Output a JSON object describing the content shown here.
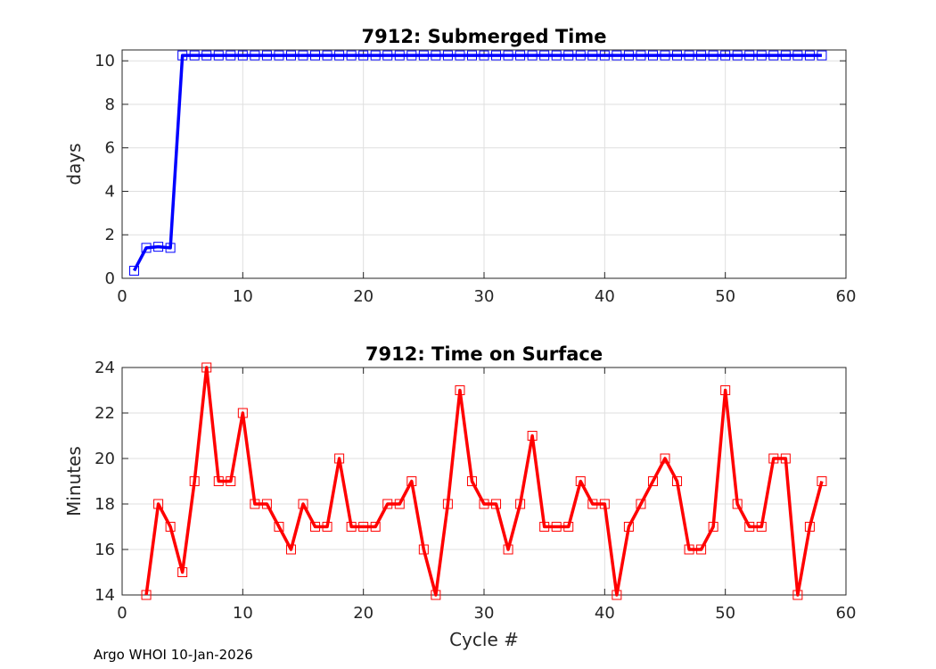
{
  "footer": "Argo WHOI 10-Jan-2026",
  "chart_data": [
    {
      "type": "line",
      "title": "7912: Submerged Time",
      "xlabel": "",
      "ylabel": "days",
      "xlim": [
        0,
        60
      ],
      "ylim": [
        0,
        10.5
      ],
      "xticks": [
        0,
        10,
        20,
        30,
        40,
        50,
        60
      ],
      "yticks": [
        0,
        2,
        4,
        6,
        8,
        10
      ],
      "grid": true,
      "color": "#0000ff",
      "marker": "square",
      "series": [
        {
          "x": [
            1,
            2,
            3,
            4,
            5,
            6,
            7,
            8,
            9,
            10,
            11,
            12,
            13,
            14,
            15,
            16,
            17,
            18,
            19,
            20,
            21,
            22,
            23,
            24,
            25,
            26,
            27,
            28,
            29,
            30,
            31,
            32,
            33,
            34,
            35,
            36,
            37,
            38,
            39,
            40,
            41,
            42,
            43,
            44,
            45,
            46,
            47,
            48,
            49,
            50,
            51,
            52,
            53,
            54,
            55,
            56,
            57,
            58
          ],
          "y": [
            0.35,
            1.4,
            1.45,
            1.4,
            10.25,
            10.25,
            10.25,
            10.25,
            10.25,
            10.25,
            10.25,
            10.25,
            10.25,
            10.25,
            10.25,
            10.25,
            10.25,
            10.25,
            10.25,
            10.25,
            10.25,
            10.25,
            10.25,
            10.25,
            10.25,
            10.25,
            10.25,
            10.25,
            10.25,
            10.25,
            10.25,
            10.25,
            10.25,
            10.25,
            10.25,
            10.25,
            10.25,
            10.25,
            10.25,
            10.25,
            10.25,
            10.25,
            10.25,
            10.25,
            10.25,
            10.25,
            10.25,
            10.25,
            10.25,
            10.25,
            10.25,
            10.25,
            10.25,
            10.25,
            10.25,
            10.25,
            10.25,
            10.25
          ]
        }
      ]
    },
    {
      "type": "line",
      "title": "7912: Time on Surface",
      "xlabel": "Cycle #",
      "ylabel": "Minutes",
      "xlim": [
        0,
        60
      ],
      "ylim": [
        14,
        24
      ],
      "xticks": [
        0,
        10,
        20,
        30,
        40,
        50,
        60
      ],
      "yticks": [
        14,
        16,
        18,
        20,
        22,
        24
      ],
      "grid": true,
      "color": "#ff0000",
      "marker": "square",
      "series": [
        {
          "x": [
            2,
            3,
            4,
            5,
            6,
            7,
            8,
            9,
            10,
            11,
            12,
            13,
            14,
            15,
            16,
            17,
            18,
            19,
            20,
            21,
            22,
            23,
            24,
            25,
            26,
            27,
            28,
            29,
            30,
            31,
            32,
            33,
            34,
            35,
            36,
            37,
            38,
            39,
            40,
            41,
            42,
            43,
            44,
            45,
            46,
            47,
            48,
            49,
            50,
            51,
            52,
            53,
            54,
            55,
            56,
            57,
            58
          ],
          "y": [
            14,
            18,
            17,
            15,
            19,
            24,
            19,
            19,
            22,
            18,
            18,
            17,
            16,
            18,
            17,
            17,
            20,
            17,
            17,
            17,
            18,
            18,
            19,
            16,
            14,
            18,
            23,
            19,
            18,
            18,
            16,
            18,
            21,
            17,
            17,
            17,
            19,
            18,
            18,
            14,
            17,
            18,
            19,
            20,
            19,
            16,
            16,
            17,
            23,
            18,
            17,
            17,
            20,
            20,
            14,
            17,
            19
          ]
        }
      ]
    }
  ]
}
